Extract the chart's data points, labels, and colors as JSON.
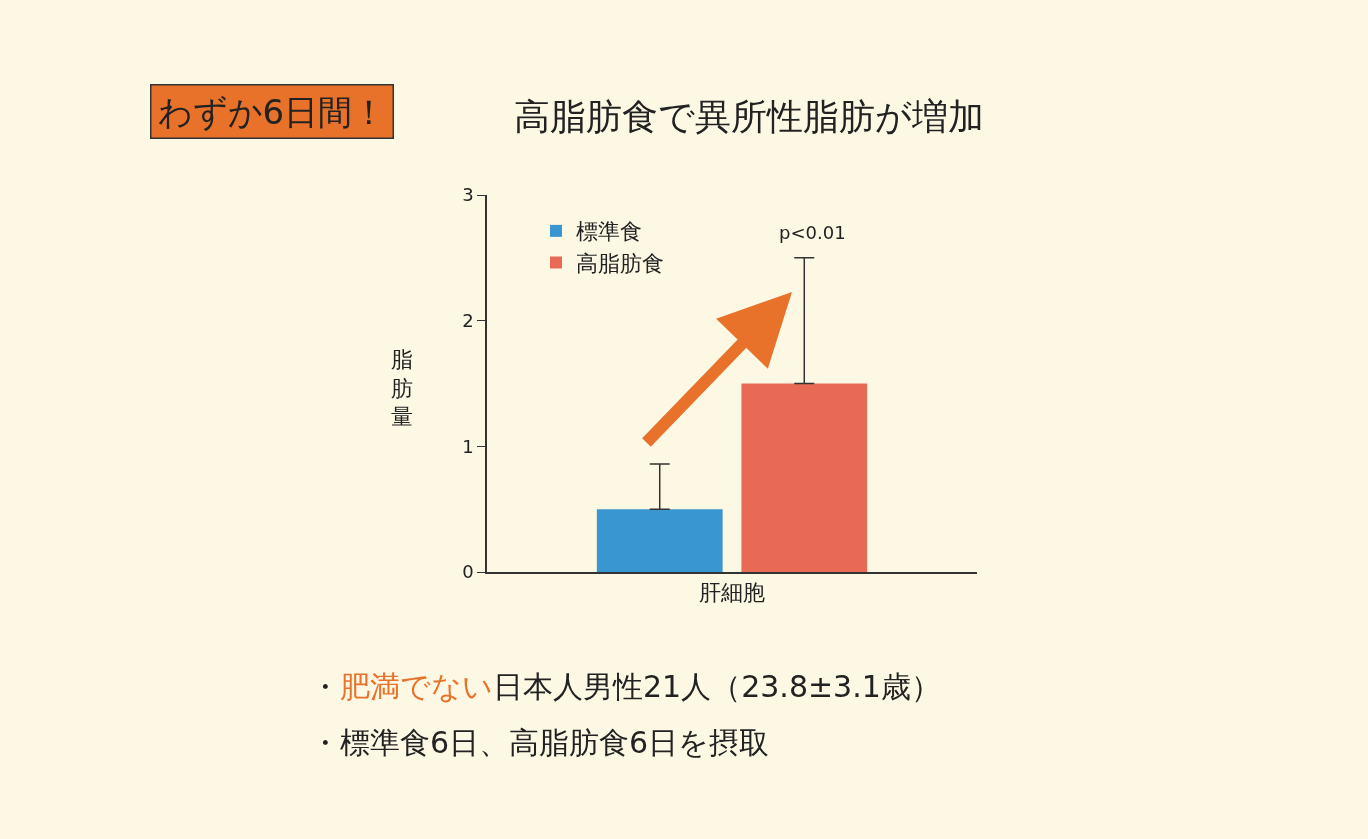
{
  "chart_data": {
    "type": "bar",
    "title": "わずか6日間！",
    "subtitle": "高脂肪食で異所性脂肪が増加",
    "ylabel": "脂肪量",
    "categories": [
      "肝細胞"
    ],
    "series": [
      {
        "name": "標準食",
        "color": "#3a96d0",
        "values": [
          0.5
        ],
        "errors": [
          [
            0.5,
            0.86
          ]
        ]
      },
      {
        "name": "高脂肪食",
        "color": "#e86a55",
        "values": [
          1.5
        ],
        "errors": [
          [
            1.5,
            2.5
          ]
        ]
      }
    ],
    "ylim": [
      0,
      3
    ],
    "yticks": [
      0,
      1,
      2,
      3
    ],
    "grid": false,
    "legend": "top left",
    "annotations": [
      "p<0.01",
      "・",
      "肥満でない",
      "日本人男性21人（23.8±3.1歳）",
      "・標準食6日、高脂肪食6日を摂取"
    ]
  }
}
